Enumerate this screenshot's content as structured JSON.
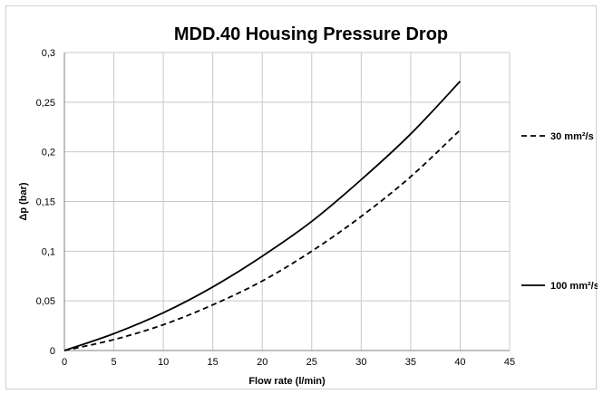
{
  "chart_data": {
    "type": "line",
    "title": "MDD.40 Housing Pressure Drop",
    "xlabel": "Flow rate (l/min)",
    "ylabel": "Δp (bar)",
    "xlim": [
      0,
      45
    ],
    "ylim": [
      0,
      0.3
    ],
    "x_ticks": [
      "0",
      "5",
      "10",
      "15",
      "20",
      "25",
      "30",
      "35",
      "40",
      "45"
    ],
    "y_ticks": [
      "0",
      "0,05",
      "0,1",
      "0,15",
      "0,2",
      "0,25",
      "0,3"
    ],
    "grid": true,
    "legend_position": "right",
    "series": [
      {
        "name": "30 mm²/s",
        "style": "dashed",
        "color": "#000000",
        "x": [
          0,
          5,
          10,
          15,
          20,
          25,
          30,
          35,
          40
        ],
        "y": [
          0,
          0.011,
          0.026,
          0.046,
          0.07,
          0.1,
          0.135,
          0.175,
          0.222
        ]
      },
      {
        "name": "100 mm²/s",
        "style": "solid",
        "color": "#000000",
        "x": [
          0,
          5,
          10,
          15,
          20,
          25,
          30,
          35,
          40
        ],
        "y": [
          0,
          0.017,
          0.038,
          0.064,
          0.095,
          0.13,
          0.172,
          0.218,
          0.271
        ]
      }
    ]
  }
}
